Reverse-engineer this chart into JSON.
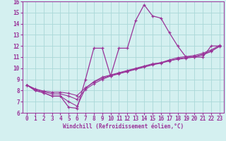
{
  "xlabel": "Windchill (Refroidissement éolien,°C)",
  "x": [
    0,
    1,
    2,
    3,
    4,
    5,
    6,
    7,
    8,
    9,
    10,
    11,
    12,
    13,
    14,
    15,
    16,
    17,
    18,
    19,
    20,
    21,
    22,
    23
  ],
  "series1_y": [
    8.5,
    8.0,
    7.8,
    7.5,
    7.5,
    6.5,
    6.4,
    9.0,
    11.8,
    11.8,
    9.3,
    11.8,
    11.8,
    14.3,
    15.7,
    14.7,
    14.5,
    13.2,
    12.0,
    11.0,
    11.0,
    11.0,
    12.0,
    12.0
  ],
  "series2_y": [
    8.5,
    8.0,
    7.8,
    7.5,
    7.5,
    7.0,
    6.6,
    8.2,
    8.8,
    9.2,
    9.4,
    9.6,
    9.8,
    10.0,
    10.2,
    10.4,
    10.5,
    10.7,
    10.8,
    10.9,
    11.0,
    11.2,
    11.5,
    12.0
  ],
  "series3_y": [
    8.5,
    8.1,
    7.9,
    7.7,
    7.7,
    7.5,
    7.2,
    8.1,
    8.6,
    9.0,
    9.3,
    9.5,
    9.7,
    9.9,
    10.1,
    10.3,
    10.45,
    10.65,
    10.85,
    10.95,
    11.05,
    11.25,
    11.55,
    11.95
  ],
  "series4_y": [
    8.5,
    8.15,
    7.95,
    7.85,
    7.85,
    7.75,
    7.55,
    8.25,
    8.75,
    9.1,
    9.35,
    9.55,
    9.75,
    9.95,
    10.15,
    10.35,
    10.5,
    10.75,
    10.95,
    11.05,
    11.15,
    11.35,
    11.65,
    12.05
  ],
  "color": "#993399",
  "bg_color": "#d4f0f0",
  "grid_color": "#aad8d8",
  "ylim": [
    6,
    16
  ],
  "xlim": [
    -0.5,
    23.5
  ],
  "yticks": [
    6,
    7,
    8,
    9,
    10,
    11,
    12,
    13,
    14,
    15,
    16
  ],
  "xticks": [
    0,
    1,
    2,
    3,
    4,
    5,
    6,
    7,
    8,
    9,
    10,
    11,
    12,
    13,
    14,
    15,
    16,
    17,
    18,
    19,
    20,
    21,
    22,
    23
  ],
  "tick_fontsize": 5.5,
  "xlabel_fontsize": 5.5
}
